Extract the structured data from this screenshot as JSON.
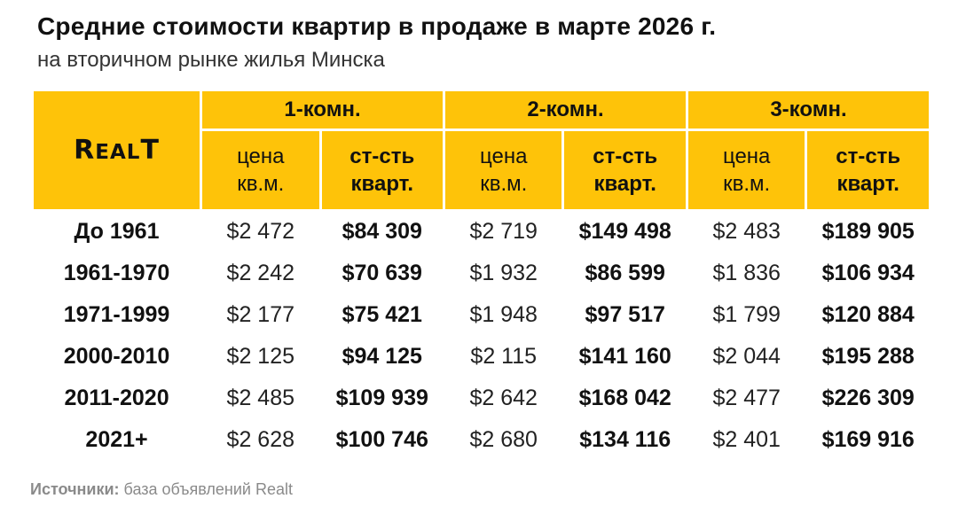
{
  "title": "Средние стоимости квартир в продаже в марте 2026 г.",
  "subtitle": "на вторичном рынке жилья Минска",
  "logo_text": "Realt",
  "source_label": "Источники:",
  "source_text": "база объявлений Realt",
  "colors": {
    "header_bg": "#fec309",
    "text": "#111111",
    "footer": "#8a8a8a"
  },
  "chart_data": {
    "type": "table",
    "room_groups": [
      "1-комн.",
      "2-комн.",
      "3-комн."
    ],
    "subheaders": {
      "price_line1": "цена",
      "price_line2": "кв.м.",
      "total_line1": "ст-сть",
      "total_line2": "кварт."
    },
    "rows": [
      {
        "period": "До 1961",
        "cells": [
          "$2 472",
          "$84 309",
          "$2 719",
          "$149 498",
          "$2 483",
          "$189 905"
        ]
      },
      {
        "period": "1961-1970",
        "cells": [
          "$2 242",
          "$70 639",
          "$1 932",
          "$86 599",
          "$1 836",
          "$106 934"
        ]
      },
      {
        "period": "1971-1999",
        "cells": [
          "$2 177",
          "$75 421",
          "$1 948",
          "$97 517",
          "$1 799",
          "$120 884"
        ]
      },
      {
        "period": "2000-2010",
        "cells": [
          "$2 125",
          "$94 125",
          "$2 115",
          "$141 160",
          "$2 044",
          "$195 288"
        ]
      },
      {
        "period": "2011-2020",
        "cells": [
          "$2 485",
          "$109 939",
          "$2 642",
          "$168 042",
          "$2 477",
          "$226 309"
        ]
      },
      {
        "period": "2021+",
        "cells": [
          "$2 628",
          "$100 746",
          "$2 680",
          "$134 116",
          "$2 401",
          "$169 916"
        ]
      }
    ]
  }
}
